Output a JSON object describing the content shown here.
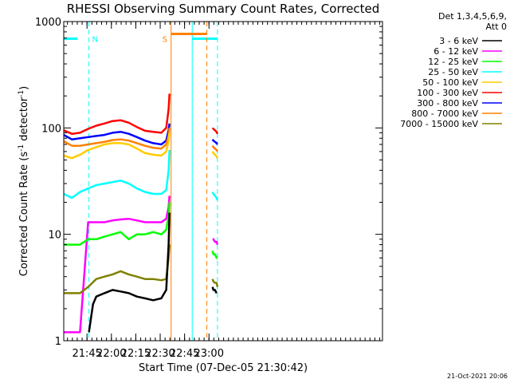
{
  "chart_data": {
    "type": "line",
    "title": "RHESSI Observing Summary Count Rates, Corrected",
    "xlabel": "Start Time (07-Dec-05 21:30:42)",
    "ylabel": "Corrected Count Rate (s",
    "ylabel_sup1": "-1",
    "ylabel_mid": " detector",
    "ylabel_sup2": "-1",
    "ylabel_end": ")",
    "yscale": "log",
    "ylim": [
      1,
      1000
    ],
    "xlim_min": [
      0,
      196
    ],
    "x_ticks": [
      {
        "t": 14.3,
        "label": "21:45"
      },
      {
        "t": 29.3,
        "label": "22:00"
      },
      {
        "t": 44.3,
        "label": "22:15"
      },
      {
        "t": 59.3,
        "label": "22:30"
      },
      {
        "t": 74.3,
        "label": "22:45"
      },
      {
        "t": 89.3,
        "label": "23:00"
      }
    ],
    "y_ticks": [
      {
        "v": 1,
        "label": "1"
      },
      {
        "v": 10,
        "label": "10"
      },
      {
        "v": 100,
        "label": "100"
      },
      {
        "v": 1000,
        "label": "1000"
      }
    ],
    "legend": {
      "header1": "Det 1,3,4,5,6,9,",
      "header2": "Att 0",
      "entries": [
        {
          "name": "3 - 6 keV",
          "color": "#000000"
        },
        {
          "name": "6 - 12 keV",
          "color": "#ff00ff"
        },
        {
          "name": "12 - 25 keV",
          "color": "#00ff00"
        },
        {
          "name": "25 - 50 keV",
          "color": "#00ffff"
        },
        {
          "name": "50 - 100 keV",
          "color": "#ffcc00"
        },
        {
          "name": "100 - 300 keV",
          "color": "#ff0000"
        },
        {
          "name": "300 - 800 keV",
          "color": "#0000ff"
        },
        {
          "name": "800 - 7000 keV",
          "color": "#ff8000"
        },
        {
          "name": "7000 - 15000 keV",
          "color": "#808000"
        }
      ]
    },
    "markers": {
      "N_label": "N",
      "S_label": "S",
      "night_color": "#00ffff",
      "saa_color": "#ff8000",
      "night_bars": [
        [
          0,
          8.5
        ],
        [
          79,
          94.5
        ]
      ],
      "night_solid": [
        0,
        79
      ],
      "night_dashed": [
        15.5,
        94.5
      ],
      "saa_bar": [
        66,
        88
      ],
      "saa_solid": [
        66
      ],
      "saa_dashed": [
        88
      ],
      "bar_level": 690
    },
    "series": [
      {
        "name": "100 - 300 keV",
        "color": "#ff0000",
        "segments": [
          {
            "t": [
              0,
              5,
              10,
              15,
              20,
              25,
              30,
              35,
              40,
              45,
              50,
              55,
              60,
              63,
              64.5,
              65
            ],
            "v": [
              95,
              88,
              90,
              98,
              105,
              110,
              116,
              118,
              112,
              102,
              94,
              92,
              90,
              100,
              150,
              210
            ]
          },
          {
            "t": [
              91.5,
              92,
              93,
              94,
              94.5
            ],
            "v": [
              100,
              98,
              95,
              92,
              88
            ]
          }
        ]
      },
      {
        "name": "300 - 800 keV",
        "color": "#0000ff",
        "segments": [
          {
            "t": [
              0,
              5,
              10,
              15,
              20,
              25,
              30,
              35,
              40,
              45,
              50,
              55,
              60,
              63,
              64.5,
              65
            ],
            "v": [
              86,
              78,
              80,
              82,
              84,
              86,
              90,
              92,
              88,
              82,
              76,
              72,
              70,
              76,
              95,
              110
            ]
          },
          {
            "t": [
              91.5,
              92,
              93,
              94,
              94.5
            ],
            "v": [
              78,
              76,
              74,
              72,
              70
            ]
          }
        ]
      },
      {
        "name": "800 - 7000 keV",
        "color": "#ff8000",
        "segments": [
          {
            "t": [
              0,
              5,
              10,
              15,
              20,
              25,
              30,
              35,
              40,
              45,
              50,
              55,
              60,
              63,
              64.5,
              65
            ],
            "v": [
              75,
              68,
              68,
              70,
              72,
              74,
              77,
              78,
              76,
              72,
              68,
              65,
              64,
              70,
              85,
              100
            ]
          },
          {
            "t": [
              91.5,
              92,
              93,
              94,
              94.5
            ],
            "v": [
              68,
              66,
              64,
              62,
              60
            ]
          }
        ]
      },
      {
        "name": "50 - 100 keV",
        "color": "#ffcc00",
        "segments": [
          {
            "t": [
              0,
              5,
              10,
              15,
              20,
              25,
              30,
              35,
              40,
              45,
              50,
              55,
              60,
              63,
              64.5,
              65
            ],
            "v": [
              55,
              52,
              56,
              62,
              66,
              70,
              72,
              72,
              70,
              64,
              58,
              56,
              55,
              60,
              75,
              90
            ]
          },
          {
            "t": [
              91.5,
              92,
              93,
              94,
              94.5
            ],
            "v": [
              60,
              58,
              56,
              54,
              52
            ]
          }
        ]
      },
      {
        "name": "25 - 50 keV",
        "color": "#00ffff",
        "segments": [
          {
            "t": [
              0,
              5,
              10,
              15,
              20,
              25,
              30,
              35,
              40,
              45,
              50,
              55,
              60,
              63,
              64.5,
              65
            ],
            "v": [
              24,
              22,
              25,
              27,
              29,
              30,
              31,
              32,
              30,
              27,
              25,
              24,
              24,
              26,
              40,
              62
            ]
          },
          {
            "t": [
              91.5,
              92,
              93,
              94,
              94.5
            ],
            "v": [
              25,
              24,
              23,
              22,
              21
            ]
          }
        ]
      },
      {
        "name": "6 - 12 keV",
        "color": "#ff00ff",
        "segments": [
          {
            "t": [
              0,
              5,
              10,
              15,
              20,
              25,
              30,
              35,
              40,
              45,
              50,
              55,
              60,
              63,
              64.5,
              65
            ],
            "v": [
              1.2,
              1.2,
              1.2,
              13,
              13,
              13,
              13.5,
              13.8,
              14,
              13.5,
              13,
              13,
              13,
              14,
              18,
              23
            ]
          },
          {
            "t": [
              91.5,
              92,
              93,
              94,
              94.5
            ],
            "v": [
              9,
              9,
              8.5,
              8.5,
              8
            ]
          }
        ]
      },
      {
        "name": "12 - 25 keV",
        "color": "#00ff00",
        "segments": [
          {
            "t": [
              0,
              5,
              10,
              15,
              20,
              25,
              30,
              35,
              40,
              45,
              50,
              55,
              60,
              63,
              64.5,
              65
            ],
            "v": [
              8,
              8,
              8,
              9,
              9,
              9.5,
              10,
              10.5,
              9,
              10,
              10,
              10.5,
              10,
              11,
              15,
              20
            ]
          },
          {
            "t": [
              91.5,
              92,
              93,
              94,
              94.5
            ],
            "v": [
              7,
              6.5,
              6.5,
              6,
              6
            ]
          }
        ]
      },
      {
        "name": "7000 - 15000 keV",
        "color": "#808000",
        "segments": [
          {
            "t": [
              0,
              5,
              10,
              15,
              20,
              25,
              30,
              35,
              40,
              45,
              50,
              55,
              60,
              63,
              64.5,
              65
            ],
            "v": [
              2.8,
              2.8,
              2.8,
              3.2,
              3.8,
              4,
              4.2,
              4.5,
              4.2,
              4,
              3.8,
              3.8,
              3.7,
              3.8,
              6,
              8
            ]
          },
          {
            "t": [
              91.5,
              92,
              93,
              94,
              94.5
            ],
            "v": [
              3.8,
              3.6,
              3.5,
              3.5,
              3.2
            ]
          }
        ]
      },
      {
        "name": "3 - 6 keV",
        "color": "#000000",
        "segments": [
          {
            "t": [
              15.5,
              18,
              20,
              25,
              30,
              35,
              40,
              45,
              50,
              55,
              60,
              63,
              64.5,
              65
            ],
            "v": [
              1.2,
              2.2,
              2.6,
              2.8,
              3.0,
              2.9,
              2.8,
              2.6,
              2.5,
              2.4,
              2.5,
              3.0,
              8,
              16
            ]
          },
          {
            "t": [
              91.5,
              92,
              93,
              94
            ],
            "v": [
              3.2,
              3.0,
              3.0,
              2.8
            ]
          }
        ]
      }
    ],
    "footer_stamp": "21-Oct-2021 20:06"
  }
}
